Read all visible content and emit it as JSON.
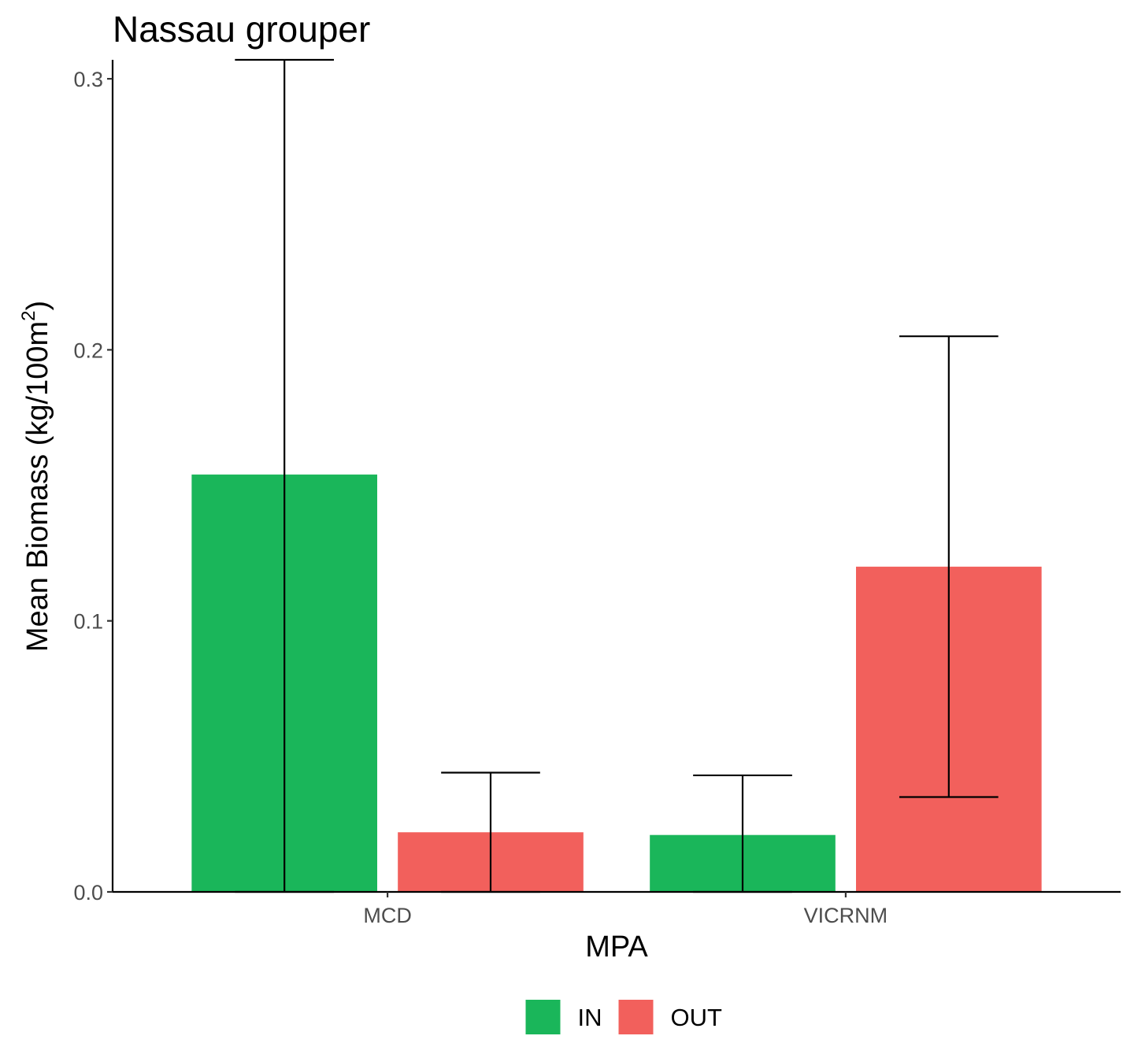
{
  "chart_data": {
    "type": "bar",
    "title": "Nassau grouper",
    "xlabel": "MPA",
    "ylabel": "Mean Biomass (kg/100m",
    "ylabel_superscript": "2",
    "ylabel_suffix": ")",
    "categories": [
      "MCD",
      "VICRNM"
    ],
    "series": [
      {
        "name": "IN",
        "color": "#1ab65a",
        "values": [
          0.154,
          0.021
        ],
        "error_low": [
          0.0,
          0.0
        ],
        "error_high": [
          0.307,
          0.043
        ]
      },
      {
        "name": "OUT",
        "color": "#f2605c",
        "values": [
          0.022,
          0.12
        ],
        "error_low": [
          0.0,
          0.035
        ],
        "error_high": [
          0.044,
          0.205
        ]
      }
    ],
    "ylim": [
      0,
      0.307
    ],
    "yticks": [
      "0.0",
      "0.1",
      "0.2",
      "0.3"
    ],
    "ytick_values": [
      0.0,
      0.1,
      0.2,
      0.3
    ],
    "grid": false,
    "legend_position": "bottom"
  }
}
